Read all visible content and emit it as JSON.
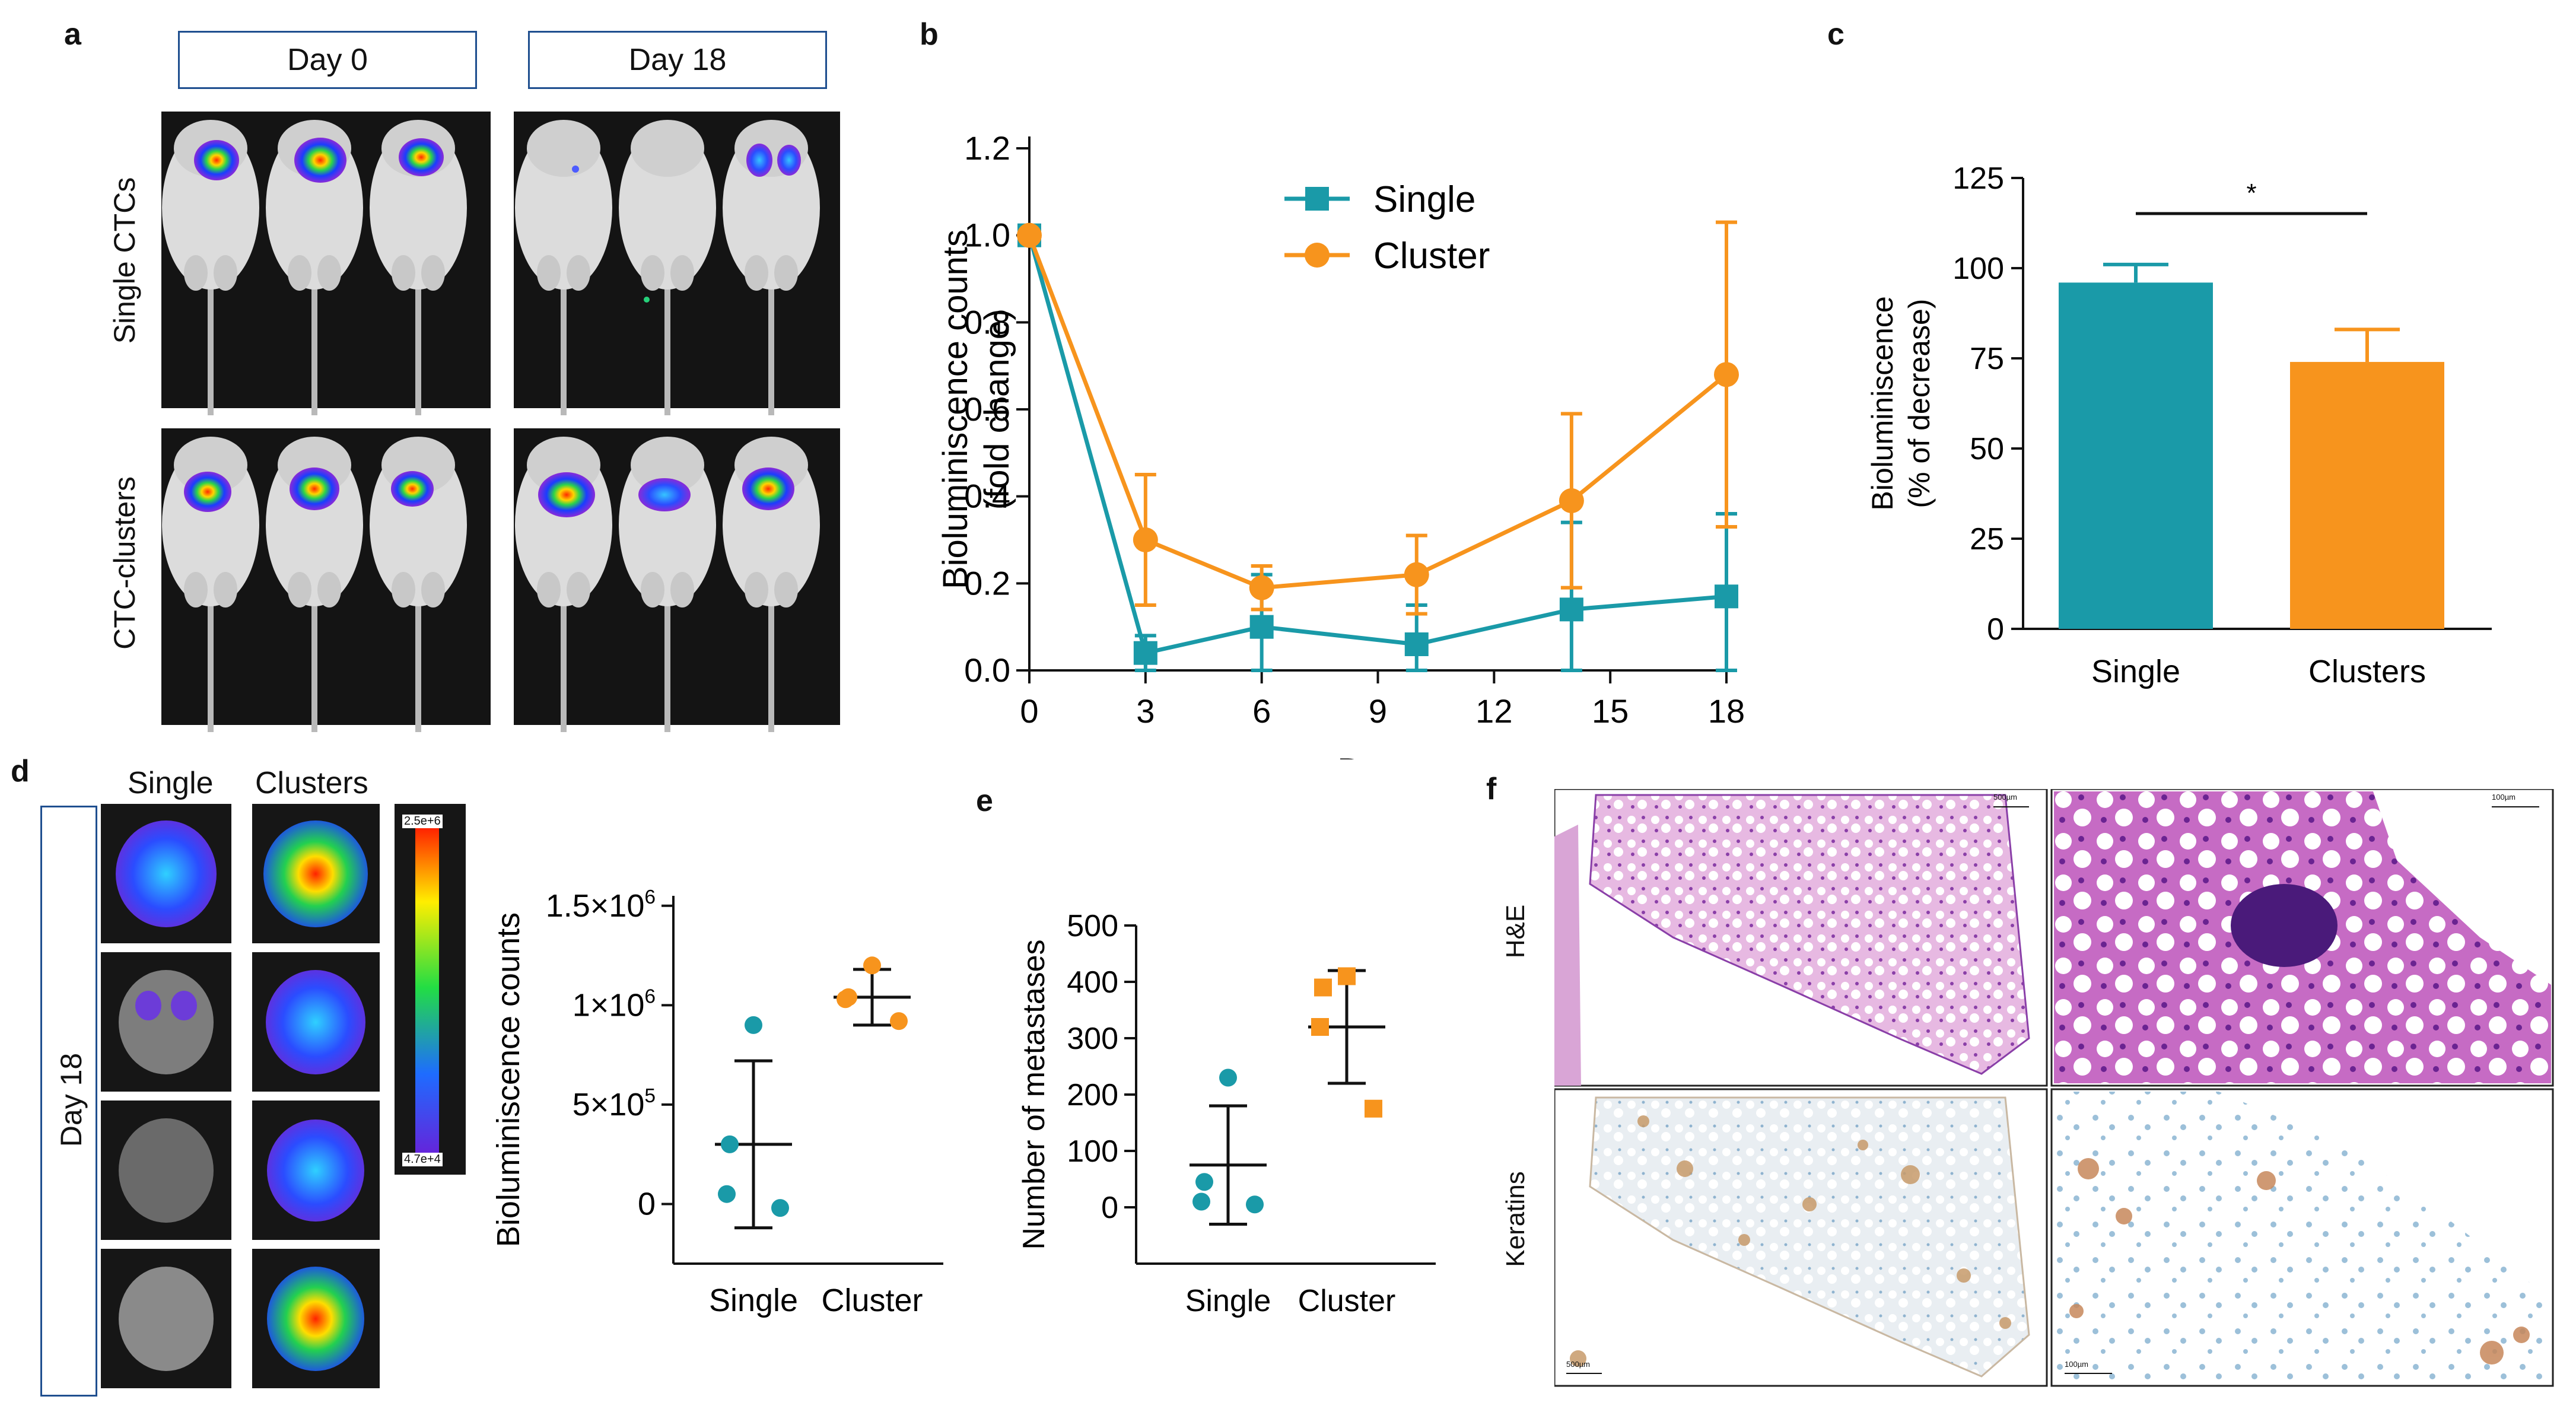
{
  "panels": {
    "a": {
      "label": "a",
      "col_headers": [
        "Day 0",
        "Day 18"
      ],
      "row_labels": [
        "Single CTCs",
        "CTC-clusters"
      ]
    },
    "d": {
      "label": "d",
      "col_headers": [
        "Single",
        "Clusters"
      ],
      "side_label": "Day 18",
      "colorbar": {
        "max": "2.5e+6",
        "min": "4.7e+4"
      }
    },
    "f": {
      "label": "f",
      "row_labels": [
        "H&E",
        "Keratins"
      ],
      "scalebars": [
        "500µm",
        "100µm",
        "500µm",
        "100µm"
      ]
    }
  },
  "colors": {
    "single": "#1a9aa8",
    "cluster": "#f7941d",
    "box_border": "#1f4f8f"
  },
  "chart_data": [
    {
      "id": "b",
      "label": "b",
      "type": "line",
      "xlabel": "Days",
      "ylabel_lines": [
        "Bioluminiscence counts",
        "(fold change)"
      ],
      "xlim": [
        0,
        18
      ],
      "ylim": [
        0,
        1.2
      ],
      "xticks": [
        0,
        3,
        6,
        9,
        12,
        15,
        18
      ],
      "yticks": [
        "0.0",
        "0.2",
        "0.4",
        "0.6",
        "0.8",
        "1.0",
        "1.2"
      ],
      "series": [
        {
          "name": "Single",
          "marker": "square",
          "x": [
            0,
            3,
            6,
            10,
            14,
            18
          ],
          "y": [
            1.0,
            0.04,
            0.1,
            0.06,
            0.14,
            0.17
          ],
          "err": [
            0,
            0.04,
            0.12,
            0.09,
            0.2,
            0.19
          ]
        },
        {
          "name": "Cluster",
          "marker": "circle",
          "x": [
            0,
            3,
            6,
            10,
            14,
            18
          ],
          "y": [
            1.0,
            0.3,
            0.19,
            0.22,
            0.39,
            0.68
          ],
          "err": [
            0,
            0.15,
            0.05,
            0.09,
            0.2,
            0.35
          ]
        }
      ]
    },
    {
      "id": "c",
      "label": "c",
      "type": "bar",
      "categories": [
        "Single",
        "Clusters"
      ],
      "values": [
        96,
        74
      ],
      "err": [
        5,
        9
      ],
      "ylabel_lines": [
        "Bioluminiscence",
        "(% of decrease)"
      ],
      "ylim": [
        0,
        125
      ],
      "yticks": [
        "0",
        "25",
        "50",
        "75",
        "100",
        "125"
      ],
      "annotation": "*"
    },
    {
      "id": "d",
      "label": "",
      "type": "scatter",
      "categories": [
        "Single",
        "Cluster"
      ],
      "ylabel": "Bioluminiscence counts",
      "ylim": [
        -300000,
        1550000
      ],
      "yticks": [
        {
          "value": 0,
          "label": "0"
        },
        {
          "value": 500000,
          "label": "5×10",
          "exp": "5"
        },
        {
          "value": 1000000,
          "label": "1×10",
          "exp": "6"
        },
        {
          "value": 1500000,
          "label": "1.5×10",
          "exp": "6"
        }
      ],
      "groups": [
        {
          "name": "Single",
          "points": [
            900000,
            300000,
            50000,
            -20000
          ],
          "mean": 300000,
          "sd": 420000
        },
        {
          "name": "Cluster",
          "points": [
            1200000,
            1040000,
            1030000,
            920000
          ],
          "mean": 1040000,
          "sd": 140000
        }
      ]
    },
    {
      "id": "e",
      "label": "e",
      "type": "scatter",
      "categories": [
        "Single",
        "Cluster"
      ],
      "ylabel": "Number of metastases",
      "ylim": [
        -100,
        500
      ],
      "yticks": [
        {
          "value": 0,
          "label": "0"
        },
        {
          "value": 100,
          "label": "100"
        },
        {
          "value": 200,
          "label": "200"
        },
        {
          "value": 300,
          "label": "300"
        },
        {
          "value": 400,
          "label": "400"
        },
        {
          "value": 500,
          "label": "500"
        }
      ],
      "groups": [
        {
          "name": "Single",
          "points": [
            230,
            45,
            10,
            5
          ],
          "mean": 75,
          "sd": 105
        },
        {
          "name": "Cluster",
          "points": [
            410,
            390,
            320,
            175
          ],
          "mean": 320,
          "sd": 100
        }
      ]
    }
  ]
}
